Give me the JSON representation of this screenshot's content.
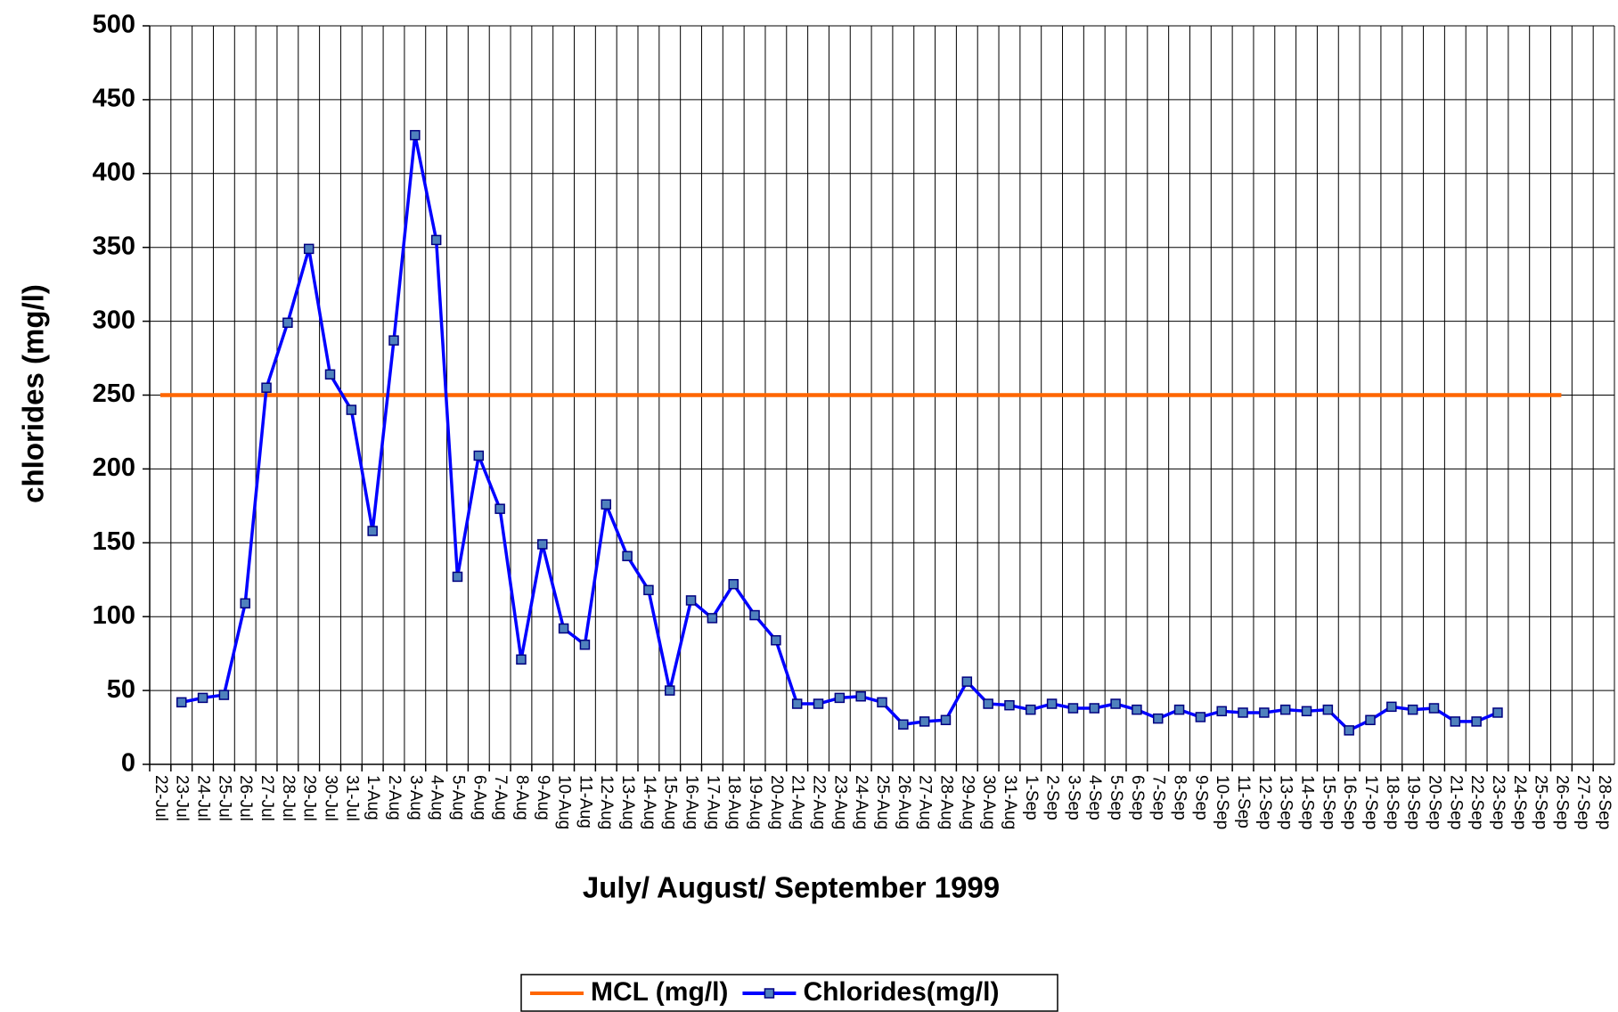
{
  "chart_data": {
    "type": "line",
    "xlabel": "July/ August/ September 1999",
    "ylabel": "chlorides (mg/l)",
    "categories": [
      "22-Jul",
      "23-Jul",
      "24-Jul",
      "25-Jul",
      "26-Jul",
      "27-Jul",
      "28-Jul",
      "29-Jul",
      "30-Jul",
      "31-Jul",
      "1-Aug",
      "2-Aug",
      "3-Aug",
      "4-Aug",
      "5-Aug",
      "6-Aug",
      "7-Aug",
      "8-Aug",
      "9-Aug",
      "10-Aug",
      "11-Aug",
      "12-Aug",
      "13-Aug",
      "14-Aug",
      "15-Aug",
      "16-Aug",
      "17-Aug",
      "18-Aug",
      "19-Aug",
      "20-Aug",
      "21-Aug",
      "22-Aug",
      "23-Aug",
      "24-Aug",
      "25-Aug",
      "26-Aug",
      "27-Aug",
      "28-Aug",
      "29-Aug",
      "30-Aug",
      "31-Aug",
      "1-Sep",
      "2-Sep",
      "3-Sep",
      "4-Sep",
      "5-Sep",
      "6-Sep",
      "7-Sep",
      "8-Sep",
      "9-Sep",
      "10-Sep",
      "11-Sep",
      "12-Sep",
      "13-Sep",
      "14-Sep",
      "15-Sep",
      "16-Sep",
      "17-Sep",
      "18-Sep",
      "19-Sep",
      "20-Sep",
      "21-Sep",
      "22-Sep",
      "23-Sep",
      "24-Sep",
      "25-Sep",
      "26-Sep",
      "27-Sep",
      "28-Sep"
    ],
    "series": [
      {
        "name": "MCL (mg/l)",
        "color": "#ff6600",
        "marker": false,
        "values": [
          250,
          250,
          250,
          250,
          250,
          250,
          250,
          250,
          250,
          250,
          250,
          250,
          250,
          250,
          250,
          250,
          250,
          250,
          250,
          250,
          250,
          250,
          250,
          250,
          250,
          250,
          250,
          250,
          250,
          250,
          250,
          250,
          250,
          250,
          250,
          250,
          250,
          250,
          250,
          250,
          250,
          250,
          250,
          250,
          250,
          250,
          250,
          250,
          250,
          250,
          250,
          250,
          250,
          250,
          250,
          250,
          250,
          250,
          250,
          250,
          250,
          250,
          250,
          250,
          250,
          250,
          250,
          null,
          null
        ]
      },
      {
        "name": "Chlorides(mg/l)",
        "color": "#0000ff",
        "marker": true,
        "values": [
          null,
          42,
          45,
          47,
          109,
          255,
          299,
          349,
          264,
          240,
          158,
          287,
          426,
          355,
          127,
          209,
          173,
          71,
          149,
          92,
          81,
          176,
          141,
          118,
          50,
          111,
          99,
          122,
          101,
          84,
          41,
          41,
          45,
          46,
          42,
          27,
          29,
          30,
          56,
          41,
          40,
          37,
          41,
          38,
          38,
          41,
          37,
          31,
          37,
          32,
          36,
          35,
          35,
          37,
          36,
          37,
          23,
          30,
          39,
          37,
          38,
          29,
          29,
          35,
          null,
          null,
          null,
          null,
          null
        ]
      }
    ],
    "ylim": [
      0,
      500
    ],
    "yticks": [
      0,
      50,
      100,
      150,
      200,
      250,
      300,
      350,
      400,
      450,
      500
    ],
    "grid": true,
    "legend": "bottom"
  }
}
